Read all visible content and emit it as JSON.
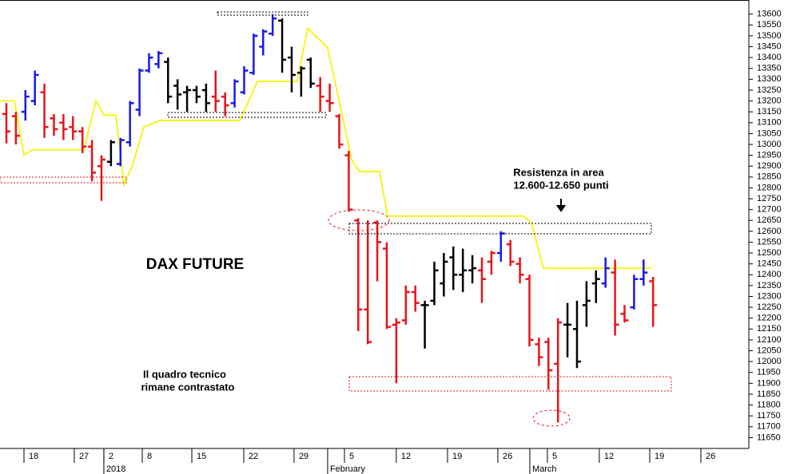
{
  "chart_data": {
    "type": "ohlc",
    "annotations": {
      "title": "DAX FUTURE",
      "resistance_1": "Resistenza in area",
      "resistance_2": "12.600-12.650 punti",
      "note_1": "Il quadro tecnico",
      "note_2": "rimane contrastato"
    },
    "xlim": [
      -0.67,
      78.07
    ],
    "ylim": [
      11600,
      13665
    ],
    "yticks": [
      11650,
      11700,
      11750,
      11800,
      11850,
      11900,
      11950,
      12000,
      12050,
      12100,
      12150,
      12200,
      12250,
      12300,
      12350,
      12400,
      12450,
      12500,
      12550,
      12600,
      12650,
      12700,
      12750,
      12800,
      12850,
      12900,
      12950,
      13000,
      13050,
      13100,
      13150,
      13200,
      13250,
      13300,
      13350,
      13400,
      13450,
      13500,
      13550,
      13600
    ],
    "xticks": [
      {
        "value": 1.85,
        "label": "18"
      },
      {
        "value": 7.14,
        "label": "27"
      },
      {
        "value": 10.25,
        "label": "2"
      },
      {
        "value": 14.29,
        "label": "8"
      },
      {
        "value": 19.5,
        "label": "15"
      },
      {
        "value": 24.96,
        "label": "22"
      },
      {
        "value": 30.25,
        "label": "29"
      },
      {
        "value": 35.55,
        "label": "5"
      },
      {
        "value": 41.0,
        "label": "12"
      },
      {
        "value": 46.39,
        "label": "19"
      },
      {
        "value": 51.68,
        "label": "26"
      },
      {
        "value": 56.89,
        "label": "5"
      },
      {
        "value": 62.35,
        "label": "12"
      },
      {
        "value": 67.65,
        "label": "19"
      },
      {
        "value": 73.03,
        "label": "26"
      }
    ],
    "xticks_period": [
      {
        "value": 10.25,
        "label": "2018"
      },
      {
        "value": 33.78,
        "label": "February"
      },
      {
        "value": 55.04,
        "label": "March"
      }
    ],
    "series": [
      {
        "type": "ohlc",
        "x": [
          0,
          1,
          2,
          3,
          4,
          5,
          6,
          7,
          8,
          9,
          10,
          11,
          12,
          13,
          14,
          15,
          16,
          17,
          18,
          19,
          20,
          21,
          22,
          23,
          24,
          25,
          26,
          27,
          28,
          29,
          30,
          31,
          32,
          33,
          34,
          35,
          36,
          37,
          38,
          39,
          40,
          41,
          42,
          43,
          44,
          45,
          46,
          47,
          48,
          49,
          50,
          51,
          52,
          53,
          54,
          55,
          56,
          57,
          58,
          59,
          60,
          61,
          62,
          63,
          64,
          65,
          66,
          67,
          68
        ],
        "open": [
          13140,
          13130,
          13150,
          13200,
          13240,
          13120,
          13100,
          13080,
          13060,
          12990,
          12900,
          12920,
          12910,
          13010,
          13160,
          13340,
          13370,
          13380,
          13270,
          13240,
          13250,
          13250,
          13220,
          13220,
          13190,
          13240,
          13330,
          13450,
          13510,
          13570,
          13400,
          13330,
          13390,
          13270,
          13200,
          13130,
          12950,
          12650,
          12240,
          12640,
          12520,
          12170,
          12190,
          12320,
          12260,
          12280,
          12360,
          12480,
          12400,
          12420,
          12420,
          12460,
          12500,
          12540,
          12450,
          12380,
          12080,
          12090,
          11990,
          12170,
          12150,
          12260,
          12360,
          12360,
          12410,
          12220,
          12250,
          12380,
          12370
        ],
        "high": [
          13190,
          13150,
          13250,
          13340,
          13280,
          13140,
          13140,
          13130,
          13080,
          13020,
          12950,
          13020,
          13030,
          13200,
          13350,
          13420,
          13430,
          13400,
          13300,
          13270,
          13270,
          13280,
          13340,
          13240,
          13300,
          13360,
          13510,
          13530,
          13600,
          13580,
          13450,
          13360,
          13400,
          13310,
          13280,
          13140,
          12970,
          12660,
          12650,
          12650,
          12550,
          12200,
          12350,
          12350,
          12280,
          12460,
          12500,
          12530,
          12520,
          12490,
          12480,
          12510,
          12600,
          12560,
          12480,
          12400,
          12110,
          12110,
          12200,
          12270,
          12280,
          12370,
          12420,
          12480,
          12470,
          12260,
          12400,
          12470,
          12390
        ],
        "low": [
          13005,
          13000,
          13110,
          13180,
          13030,
          13040,
          13020,
          13020,
          12960,
          12830,
          12740,
          12900,
          12900,
          12990,
          13130,
          13330,
          13350,
          13190,
          13160,
          13150,
          13190,
          13150,
          13150,
          13130,
          13170,
          13230,
          13320,
          13410,
          13500,
          13330,
          13240,
          13220,
          13260,
          13150,
          13150,
          12980,
          12690,
          12140,
          12080,
          12370,
          12150,
          11900,
          12170,
          12230,
          12060,
          12260,
          12300,
          12330,
          12320,
          12360,
          12270,
          12400,
          12460,
          12440,
          12360,
          12070,
          11980,
          11870,
          11720,
          12020,
          11970,
          12160,
          12270,
          12340,
          12120,
          12180,
          12240,
          12350,
          12160
        ],
        "close": [
          13060,
          13040,
          13220,
          13320,
          13080,
          13070,
          13070,
          13060,
          12990,
          12870,
          12930,
          13010,
          13020,
          13190,
          13340,
          13400,
          13420,
          13220,
          13230,
          13250,
          13220,
          13190,
          13200,
          13180,
          13290,
          13340,
          13500,
          13520,
          13580,
          13390,
          13320,
          13350,
          13280,
          13220,
          13190,
          13000,
          12700,
          12240,
          12090,
          12550,
          12160,
          12180,
          12320,
          12270,
          12260,
          12420,
          12460,
          12400,
          12420,
          12430,
          12380,
          12500,
          12590,
          12460,
          12400,
          12100,
          12020,
          11960,
          12180,
          12170,
          12000,
          12280,
          12380,
          12430,
          12170,
          12190,
          12380,
          12410,
          12260
        ],
        "colors": [
          "#e8141a",
          "#e8141a",
          "#1a1ae6",
          "#1a1ae6",
          "#e8141a",
          "#e8141a",
          "#e8141a",
          "#e8141a",
          "#e8141a",
          "#e8141a",
          "#e8141a",
          "#000000",
          "#1a1ae6",
          "#1a1ae6",
          "#1a1ae6",
          "#1a1ae6",
          "#1a1ae6",
          "#000000",
          "#000000",
          "#000000",
          "#000000",
          "#000000",
          "#e8141a",
          "#e8141a",
          "#1a1ae6",
          "#1a1ae6",
          "#1a1ae6",
          "#1a1ae6",
          "#1a1ae6",
          "#000000",
          "#000000",
          "#000000",
          "#000000",
          "#e8141a",
          "#e8141a",
          "#e8141a",
          "#e8141a",
          "#e8141a",
          "#e8141a",
          "#e8141a",
          "#e8141a",
          "#e8141a",
          "#e8141a",
          "#e8141a",
          "#000000",
          "#000000",
          "#000000",
          "#000000",
          "#000000",
          "#000000",
          "#e8141a",
          "#e8141a",
          "#1a1ae6",
          "#e8141a",
          "#e8141a",
          "#e8141a",
          "#e8141a",
          "#e8141a",
          "#e8141a",
          "#000000",
          "#000000",
          "#000000",
          "#000000",
          "#1a1ae6",
          "#e8141a",
          "#e8141a",
          "#1a1ae6",
          "#1a1ae6",
          "#e8141a"
        ]
      },
      {
        "type": "line",
        "color": "#f5f51e",
        "x": [
          -0.67,
          0.84,
          1.85,
          2.69,
          8.15,
          9.41,
          10.25,
          11.51,
          12.35,
          13.19,
          14.45,
          16.13,
          24.54,
          25.38,
          26.39,
          30.59,
          31.68,
          33.78,
          35.04,
          36.3,
          37.14,
          39.24,
          40.08,
          54.37,
          55.21,
          56.47,
          67.82
        ],
        "values": [
          13200,
          13200,
          12950,
          12975,
          12975,
          13200,
          13135,
          13135,
          12815,
          12895,
          13080,
          13110,
          13110,
          13190,
          13290,
          13290,
          13535,
          13445,
          13190,
          12930,
          12875,
          12875,
          12670,
          12670,
          12640,
          12430,
          12430
        ]
      }
    ]
  }
}
